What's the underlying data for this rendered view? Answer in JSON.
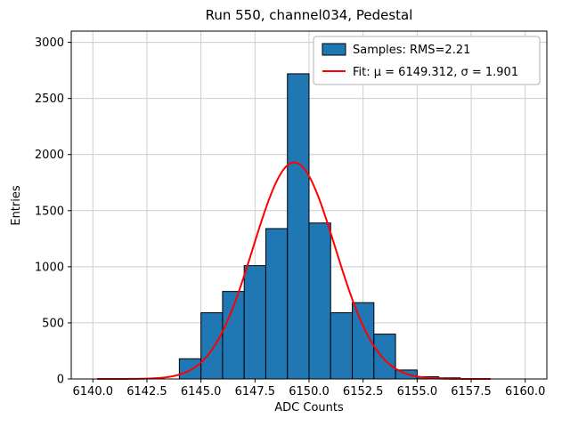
{
  "chart_data": {
    "type": "bar",
    "subtype": "histogram-with-gaussian-fit",
    "title": "Run 550, channel034, Pedestal",
    "xlabel": "ADC Counts",
    "ylabel": "Entries",
    "xlim": [
      6139.0,
      6161.0
    ],
    "ylim": [
      0,
      3100
    ],
    "x_tick_values": [
      6140.0,
      6142.5,
      6145.0,
      6147.5,
      6150.0,
      6152.5,
      6155.0,
      6157.5,
      6160.0
    ],
    "x_tick_labels": [
      "6140.0",
      "6142.5",
      "6145.0",
      "6147.5",
      "6150.0",
      "6152.5",
      "6155.0",
      "6157.5",
      "6160.0"
    ],
    "y_ticks": [
      0,
      500,
      1000,
      1500,
      2000,
      2500,
      3000
    ],
    "bin_width": 1.0,
    "bin_left_edges": [
      6144,
      6145,
      6146,
      6147,
      6148,
      6149,
      6150,
      6151,
      6152,
      6153,
      6154,
      6155,
      6156
    ],
    "counts": [
      180,
      590,
      780,
      1010,
      1340,
      2720,
      1390,
      590,
      680,
      400,
      80,
      20,
      10
    ],
    "fit": {
      "mu": 6149.312,
      "sigma": 1.901,
      "amplitude": 1930,
      "x_start": 6140.2,
      "x_end": 6158.4
    },
    "legend": [
      "Samples: RMS=2.21",
      "Fit: μ = 6149.312, σ = 1.901"
    ],
    "grid": true,
    "legend_position": "upper right",
    "colors": {
      "bar_fill": "#1f77b4",
      "bar_edge": "#000000",
      "fit_line": "#ff0000",
      "grid": "#cccccc",
      "frame": "#000000",
      "legend_border": "#b0b0b0"
    }
  }
}
